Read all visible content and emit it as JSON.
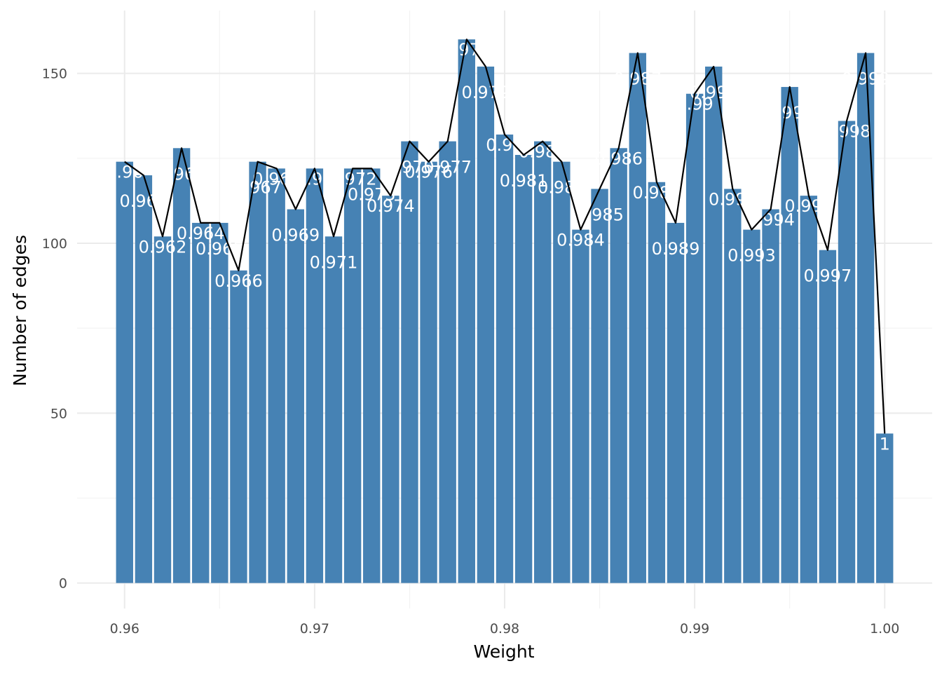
{
  "chart_data": {
    "type": "bar",
    "xlabel": "Weight",
    "ylabel": "Number of edges",
    "xlim": [
      0.9575,
      1.0025
    ],
    "ylim": [
      0,
      160
    ],
    "x_ticks": [
      "0.96",
      "0.97",
      "0.98",
      "0.99",
      "1.00"
    ],
    "y_ticks": [
      "0",
      "50",
      "100",
      "150"
    ],
    "grid": true,
    "bar_color": "#4682b4",
    "line_color": "#000000",
    "x": [
      0.96,
      0.961,
      0.962,
      0.963,
      0.964,
      0.965,
      0.966,
      0.967,
      0.968,
      0.969,
      0.97,
      0.971,
      0.972,
      0.973,
      0.974,
      0.975,
      0.976,
      0.977,
      0.978,
      0.979,
      0.98,
      0.981,
      0.982,
      0.983,
      0.984,
      0.985,
      0.986,
      0.987,
      0.988,
      0.989,
      0.99,
      0.991,
      0.992,
      0.993,
      0.994,
      0.995,
      0.996,
      0.997,
      0.998,
      0.999,
      1.0
    ],
    "values": [
      124,
      120,
      102,
      128,
      106,
      106,
      92,
      124,
      122,
      110,
      122,
      102,
      122,
      122,
      114,
      130,
      124,
      130,
      160,
      152,
      132,
      126,
      130,
      124,
      104,
      116,
      128,
      156,
      118,
      106,
      144,
      152,
      116,
      104,
      110,
      146,
      114,
      98,
      136,
      156,
      44
    ],
    "bar_labels": [
      "0.96",
      "0.961",
      "0.962",
      "0.963",
      "0.964",
      "0.965",
      "0.966",
      "0.967",
      "0.968",
      "0.969",
      "0.97",
      "0.971",
      "0.972",
      "0.973",
      "0.974",
      "0.975",
      "0.976",
      "0.977",
      "0.978",
      "0.979",
      "0.98",
      "0.981",
      "0.982",
      "0.983",
      "0.984",
      "0.985",
      "0.986",
      "0.987",
      "0.988",
      "0.989",
      "0.99",
      "0.991",
      "0.992",
      "0.993",
      "0.994",
      "0.995",
      "0.996",
      "0.997",
      "0.998",
      "0.999",
      "1"
    ]
  }
}
